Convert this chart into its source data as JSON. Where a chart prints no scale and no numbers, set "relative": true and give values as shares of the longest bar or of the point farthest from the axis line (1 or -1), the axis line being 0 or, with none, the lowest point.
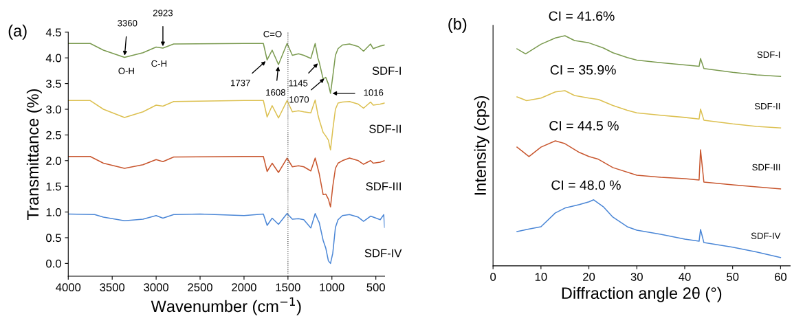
{
  "chart_data": [
    {
      "type": "line",
      "xlabel": "Wavenumber (cm$^{−1}$)",
      "ylabel": "Transmittance (%)",
      "xlim": [
        4000,
        400
      ],
      "xticks": [
        4000,
        3500,
        3000,
        2500,
        2000,
        1500,
        1000,
        500
      ],
      "ylim": [
        -0.25,
        4.5
      ],
      "yticks": [
        {
          "value": 0,
          "label": "0.0"
        },
        0.5,
        {
          "value": 1,
          "label": "1.0"
        },
        1.5,
        {
          "value": 2,
          "label": "2.0"
        },
        2.5,
        {
          "value": 3,
          "label": "3.0"
        },
        3.5,
        {
          "value": 4,
          "label": "4.0"
        },
        4.5
      ],
      "ref_lines": [
        {
          "axis": "x",
          "value": 1500,
          "line_style": "dotted",
          "color": "#333333"
        }
      ],
      "annotations": [
        "(a)",
        {
          "text": "3360",
          "x": 3360,
          "y": 4.01
        },
        {
          "text": "O-H",
          "x": 3360,
          "y": 4.01
        },
        {
          "text": "2923",
          "x": 2923,
          "y": 4.19
        },
        {
          "text": "C-H",
          "x": 2923,
          "y": 4.19
        },
        {
          "text": "C=O",
          "x": 1675,
          "y": 4.15
        },
        {
          "text": "1737",
          "x": 1737,
          "y": 3.96
        },
        {
          "text": "1608",
          "x": 1608,
          "y": 3.87
        },
        {
          "text": "1145",
          "x": 1145,
          "y": 3.92
        },
        {
          "text": "1070",
          "x": 1070,
          "y": 3.62
        },
        {
          "text": "1016",
          "x": 1016,
          "y": 3.31
        }
      ],
      "series": [
        {
          "name": "SDF-I",
          "color": "#7a9a4f",
          "x": [
            4000,
            3750,
            3600,
            3360,
            3150,
            3000,
            2923,
            2800,
            2000,
            1780,
            1737,
            1680,
            1608,
            1510,
            1450,
            1380,
            1320,
            1240,
            1190,
            1160,
            1145,
            1100,
            1070,
            1040,
            1016,
            990,
            960,
            930,
            880,
            800,
            700,
            640,
            560,
            530,
            450,
            400
          ],
          "values": [
            4.28,
            4.28,
            4.15,
            4.01,
            4.1,
            4.21,
            4.19,
            4.27,
            4.28,
            4.28,
            3.96,
            4.15,
            3.87,
            4.28,
            4.05,
            4.08,
            4.05,
            3.99,
            4.28,
            4.0,
            3.92,
            3.59,
            3.62,
            3.49,
            3.31,
            3.64,
            4.05,
            4.18,
            4.25,
            4.27,
            4.22,
            4.13,
            4.27,
            4.18,
            4.23,
            4.25
          ]
        },
        {
          "name": "SDF-II",
          "color": "#dcc050",
          "x": [
            4000,
            3750,
            3600,
            3360,
            3150,
            3000,
            2923,
            2800,
            2000,
            1780,
            1737,
            1680,
            1608,
            1510,
            1450,
            1380,
            1320,
            1240,
            1190,
            1160,
            1145,
            1100,
            1070,
            1040,
            1016,
            990,
            960,
            930,
            880,
            800,
            700,
            640,
            560,
            530,
            450,
            400
          ],
          "values": [
            3.17,
            3.17,
            3.0,
            2.84,
            2.95,
            3.08,
            3.06,
            3.15,
            3.17,
            3.17,
            2.85,
            3.07,
            2.83,
            3.17,
            2.95,
            2.97,
            2.95,
            2.93,
            3.18,
            2.9,
            2.8,
            2.55,
            2.48,
            2.4,
            2.21,
            2.6,
            3.0,
            3.12,
            3.14,
            3.15,
            3.1,
            3.02,
            3.14,
            3.08,
            3.1,
            3.12
          ]
        },
        {
          "name": "SDF-III",
          "color": "#c8562e",
          "x": [
            4000,
            3750,
            3600,
            3360,
            3150,
            3000,
            2923,
            2800,
            2000,
            1780,
            1737,
            1680,
            1608,
            1510,
            1450,
            1380,
            1320,
            1240,
            1190,
            1160,
            1145,
            1100,
            1070,
            1040,
            1016,
            990,
            960,
            930,
            880,
            800,
            700,
            640,
            560,
            530,
            450,
            400
          ],
          "values": [
            2.08,
            2.08,
            1.95,
            1.85,
            1.92,
            2.02,
            1.98,
            2.07,
            2.08,
            2.08,
            1.79,
            1.95,
            1.77,
            2.05,
            1.88,
            1.9,
            1.88,
            1.8,
            2.05,
            1.85,
            1.75,
            1.34,
            1.35,
            1.25,
            1.1,
            1.5,
            1.85,
            1.95,
            2.0,
            2.05,
            2.0,
            1.93,
            2.0,
            1.95,
            1.97,
            2.0
          ]
        },
        {
          "name": "SDF-IV",
          "color": "#4a86d6",
          "x": [
            4000,
            3700,
            3600,
            3360,
            3150,
            3000,
            2923,
            2800,
            2500,
            2000,
            1780,
            1737,
            1680,
            1608,
            1510,
            1450,
            1380,
            1320,
            1240,
            1190,
            1160,
            1145,
            1100,
            1070,
            1040,
            1016,
            990,
            960,
            930,
            880,
            800,
            700,
            640,
            560,
            450,
            410,
            400
          ],
          "values": [
            0.96,
            0.95,
            0.9,
            0.83,
            0.86,
            0.93,
            0.88,
            0.95,
            0.96,
            0.93,
            0.96,
            0.74,
            0.88,
            0.76,
            0.97,
            0.86,
            0.87,
            0.85,
            0.69,
            0.97,
            0.85,
            0.8,
            0.45,
            0.3,
            0.05,
            0.0,
            0.2,
            0.7,
            0.85,
            0.93,
            0.95,
            0.9,
            0.82,
            0.92,
            0.85,
            0.95,
            0.7
          ]
        }
      ]
    },
    {
      "type": "line",
      "relative": true,
      "tick_labels": "x",
      "xlabel": "Diffraction angle 2θ (°)",
      "ylabel": "Intensity (cps)",
      "xlim": [
        0,
        62
      ],
      "xticks": [
        0,
        10,
        20,
        30,
        40,
        50,
        60
      ],
      "annotations": [
        "(b)",
        "CI = 41.6%",
        "CI = 35.9%",
        "CI = 44.5 %",
        "CI = 48.0 %"
      ],
      "series": [
        {
          "name": "SDF-I",
          "color": "#7a9a4f",
          "x": [
            5,
            6.8,
            10,
            13,
            15,
            17,
            20,
            23,
            25,
            28,
            30,
            35,
            40,
            43,
            43.3,
            44,
            50,
            55,
            60
          ],
          "values": [
            0.943,
            0.921,
            0.963,
            0.99,
            1.0,
            0.979,
            0.969,
            0.947,
            0.926,
            0.905,
            0.894,
            0.883,
            0.873,
            0.867,
            0.901,
            0.857,
            0.841,
            0.83,
            0.823
          ]
        },
        {
          "name": "SDF-II",
          "color": "#dcc050",
          "x": [
            5,
            7,
            10,
            13,
            15,
            17,
            20,
            22,
            25,
            28,
            30,
            35,
            40,
            43,
            43.3,
            44,
            50,
            55,
            60
          ],
          "values": [
            0.734,
            0.718,
            0.729,
            0.756,
            0.761,
            0.74,
            0.729,
            0.723,
            0.697,
            0.676,
            0.665,
            0.654,
            0.645,
            0.638,
            0.681,
            0.633,
            0.617,
            0.606,
            0.599
          ]
        },
        {
          "name": "SDF-III",
          "color": "#c8562e",
          "x": [
            5,
            7.5,
            10,
            13,
            15,
            18,
            20,
            22,
            25,
            30,
            35,
            40,
            43,
            43.3,
            44,
            50,
            55,
            60
          ],
          "values": [
            0.516,
            0.475,
            0.516,
            0.543,
            0.531,
            0.493,
            0.475,
            0.463,
            0.427,
            0.394,
            0.385,
            0.379,
            0.373,
            0.504,
            0.364,
            0.352,
            0.343,
            0.334
          ]
        },
        {
          "name": "SDF-IV",
          "color": "#4a86d6",
          "x": [
            5,
            7,
            10,
            13,
            15,
            18,
            20,
            21,
            23,
            25,
            28,
            30,
            35,
            40,
            43,
            43.3,
            44,
            50,
            55,
            60
          ],
          "values": [
            0.149,
            0.158,
            0.17,
            0.23,
            0.251,
            0.266,
            0.278,
            0.287,
            0.257,
            0.212,
            0.17,
            0.155,
            0.137,
            0.116,
            0.107,
            0.158,
            0.101,
            0.081,
            0.06,
            0.036
          ]
        }
      ]
    }
  ]
}
